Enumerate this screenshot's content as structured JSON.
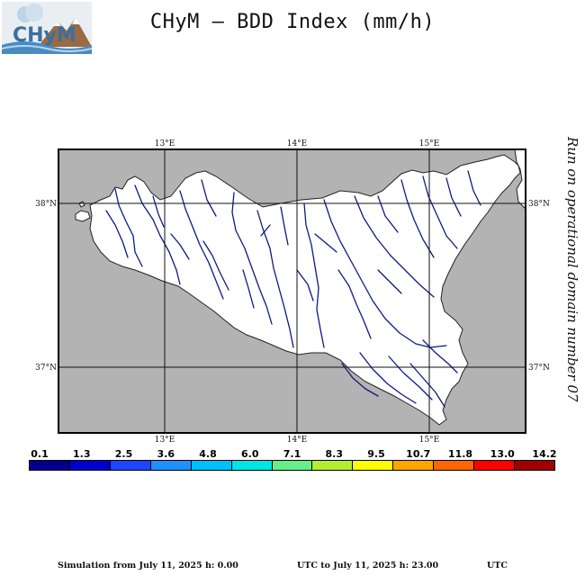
{
  "title": "CHyM – BDD Index (mm/h)",
  "logo_text": "CHyM",
  "run_note": "Run on operational domain number 07",
  "map": {
    "top_labels": [
      "13°E",
      "14°E",
      "15°E"
    ],
    "bottom_labels": [
      "13°E",
      "14°E",
      "15°E"
    ],
    "left_labels": [
      "38°N",
      "37°N"
    ],
    "right_labels": [
      "38°N",
      "37°N"
    ],
    "sea_color": "#b3b3b3",
    "land_color": "#ffffff",
    "river_color": "#0d1a80"
  },
  "colorbar": {
    "labels": [
      "0.1",
      "1.3",
      "2.5",
      "3.6",
      "4.8",
      "6.0",
      "7.1",
      "8.3",
      "9.5",
      "10.7",
      "11.8",
      "13.0",
      "14.2"
    ],
    "colors": [
      "#00008b",
      "#0000cd",
      "#1e46ff",
      "#1e90ff",
      "#00bfff",
      "#00e5e5",
      "#66ee88",
      "#b3ee33",
      "#ffff00",
      "#ffa500",
      "#ff6600",
      "#ff0000",
      "#a00000"
    ]
  },
  "footer": {
    "from": "Simulation from July 11, 2025 h: 0.00",
    "to": "UTC to July 11, 2025 h: 23.00",
    "utc": "UTC"
  }
}
